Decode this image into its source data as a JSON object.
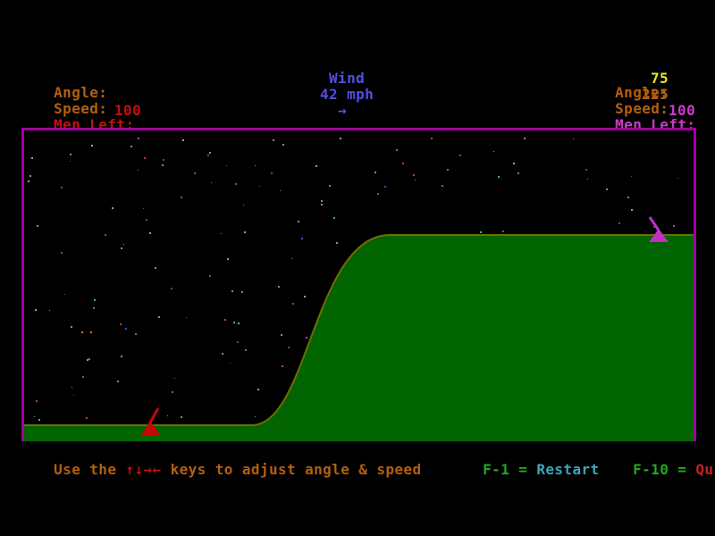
{
  "hud": {
    "left": {
      "angle_label": "Angle:",
      "angle_value": "",
      "speed_label": "Speed:",
      "speed_value": "",
      "men_label": "Men Left:",
      "men_value": "100"
    },
    "wind": {
      "label": "Wind",
      "value": "42 mph",
      "direction_arrow": "→"
    },
    "right": {
      "angle_label": "Angle:",
      "angle_value": "75",
      "speed_label": "Speed:",
      "speed_value": "225",
      "men_label": "Men Left:",
      "men_value": "100"
    }
  },
  "help": {
    "prefix": "Use the ",
    "arrow_keys": "↑↓→←",
    "suffix": " keys to adjust angle & speed",
    "restart_key": "F-1 =",
    "restart_label": "Restart",
    "quit_key": "F-10 =",
    "quit_label": "Quit"
  },
  "tanks": {
    "left": {
      "name": "player-left-tank",
      "color_name": "red"
    },
    "right": {
      "name": "player-right-tank",
      "color_name": "magenta"
    }
  },
  "colors": {
    "background": "#000000",
    "hud_label": "#B55F0E",
    "hud_red": "#C01010",
    "hud_magenta": "#C83CC8",
    "hud_yellow": "#EDE422",
    "wind_blue": "#5050E0",
    "key_green": "#21A821",
    "restart_cyan": "#3FA4B8",
    "quit_red": "#C32222",
    "border": "#A000A0",
    "terrain": "#006400",
    "terrain_edge": "#6E6E00",
    "tank_left": "#C40808",
    "tank_right": "#BE30BE"
  },
  "stars": {
    "count": 200,
    "seed": 11,
    "palette": [
      "#9a9ab0",
      "#b244b2",
      "#7a3cc8",
      "#4646c8",
      "#b44040",
      "#40a8b8",
      "#8a8a8a",
      "#c87830"
    ]
  }
}
